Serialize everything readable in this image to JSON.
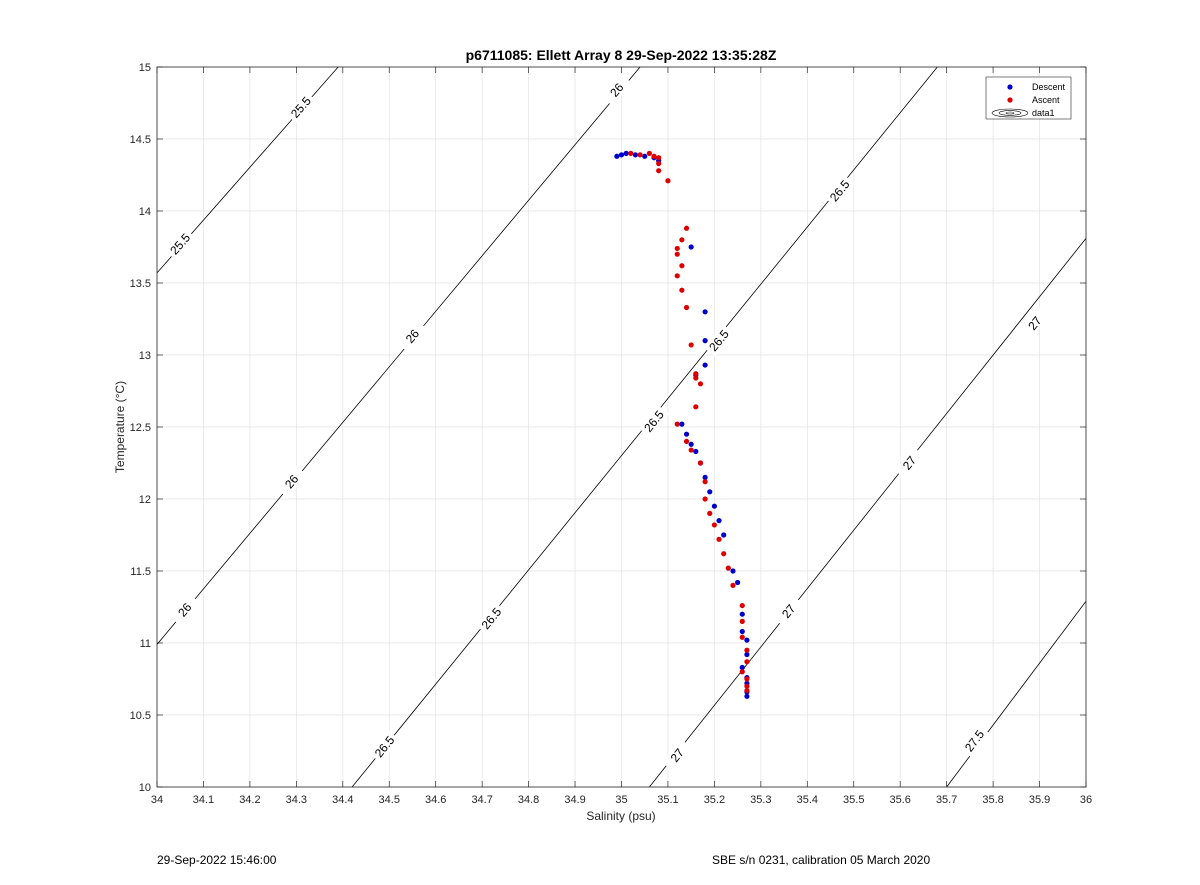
{
  "chart_data": {
    "type": "scatter",
    "title": "p6711085: Ellett Array 8 29-Sep-2022 13:35:28Z",
    "xlabel": "Salinity (psu)",
    "ylabel": "Temperature (°C)",
    "xlim": [
      34,
      36
    ],
    "ylim": [
      10,
      15
    ],
    "xticks": [
      "34",
      "34.1",
      "34.2",
      "34.3",
      "34.4",
      "34.5",
      "34.6",
      "34.7",
      "34.8",
      "34.9",
      "35",
      "35.1",
      "35.2",
      "35.3",
      "35.4",
      "35.5",
      "35.6",
      "35.7",
      "35.8",
      "35.9",
      "36"
    ],
    "yticks": [
      "10",
      "10.5",
      "11",
      "11.5",
      "12",
      "12.5",
      "13",
      "13.5",
      "14",
      "14.5",
      "15"
    ],
    "grid": true,
    "legend_position": "top-right",
    "legend": [
      "Descent",
      "Ascent",
      "data1"
    ],
    "colors": {
      "descent": "#0000cc",
      "ascent": "#dd0000",
      "contour": "#000000",
      "grid": "#e3e3e3"
    },
    "contours": [
      {
        "level": "25.5",
        "points": [
          [
            34.0,
            13.57
          ],
          [
            34.39,
            15.0
          ]
        ],
        "labels": [
          [
            34.05,
            13.77
          ],
          [
            34.31,
            14.72
          ]
        ]
      },
      {
        "level": "26",
        "points": [
          [
            34.0,
            10.99
          ],
          [
            35.04,
            15.0
          ]
        ],
        "labels": [
          [
            34.06,
            11.23
          ],
          [
            34.29,
            12.12
          ],
          [
            34.55,
            13.13
          ],
          [
            34.99,
            14.84
          ]
        ]
      },
      {
        "level": "26.5",
        "points": [
          [
            34.42,
            10.0
          ],
          [
            35.68,
            15.0
          ]
        ],
        "labels": [
          [
            34.49,
            10.28
          ],
          [
            34.72,
            11.17
          ],
          [
            35.07,
            12.54
          ],
          [
            35.21,
            13.1
          ],
          [
            35.47,
            14.14
          ]
        ]
      },
      {
        "level": "27",
        "points": [
          [
            35.06,
            10.0
          ],
          [
            36.0,
            13.81
          ]
        ],
        "labels": [
          [
            35.12,
            10.22
          ],
          [
            35.36,
            11.22
          ],
          [
            35.62,
            12.25
          ],
          [
            35.89,
            13.22
          ]
        ]
      },
      {
        "level": "27.5",
        "points": [
          [
            35.7,
            10.0
          ],
          [
            36.0,
            11.29
          ]
        ],
        "labels": [
          [
            35.76,
            10.32
          ]
        ]
      }
    ],
    "series": [
      {
        "name": "Descent",
        "x": [
          34.99,
          35.0,
          35.01,
          35.03,
          35.05,
          35.07,
          35.08,
          35.15,
          35.18,
          35.18,
          35.18,
          35.16,
          35.13,
          35.14,
          35.15,
          35.16,
          35.17,
          35.18,
          35.19,
          35.2,
          35.21,
          35.22,
          35.24,
          35.25,
          35.26,
          35.26,
          35.27,
          35.27,
          35.26,
          35.27,
          35.27,
          35.27,
          35.27
        ],
        "y": [
          14.38,
          14.39,
          14.4,
          14.39,
          14.38,
          14.37,
          14.35,
          13.75,
          13.3,
          13.1,
          12.93,
          12.86,
          12.52,
          12.45,
          12.38,
          12.33,
          12.25,
          12.15,
          12.05,
          11.95,
          11.85,
          11.75,
          11.5,
          11.42,
          11.2,
          11.08,
          11.02,
          10.92,
          10.83,
          10.76,
          10.72,
          10.66,
          10.63
        ]
      },
      {
        "name": "Ascent",
        "x": [
          35.02,
          35.04,
          35.06,
          35.07,
          35.08,
          35.08,
          35.08,
          35.1,
          35.14,
          35.13,
          35.12,
          35.12,
          35.13,
          35.12,
          35.13,
          35.14,
          35.15,
          35.16,
          35.16,
          35.17,
          35.16,
          35.12,
          35.14,
          35.15,
          35.17,
          35.18,
          35.18,
          35.19,
          35.2,
          35.21,
          35.22,
          35.23,
          35.24,
          35.26,
          35.26,
          35.26,
          35.27,
          35.27,
          35.26,
          35.27,
          35.27,
          35.27
        ],
        "y": [
          14.4,
          14.39,
          14.4,
          14.38,
          14.37,
          14.33,
          14.28,
          14.21,
          13.88,
          13.8,
          13.74,
          13.7,
          13.62,
          13.55,
          13.45,
          13.33,
          13.07,
          12.87,
          12.84,
          12.8,
          12.64,
          12.52,
          12.4,
          12.34,
          12.25,
          12.12,
          12.0,
          11.9,
          11.82,
          11.72,
          11.62,
          11.52,
          11.4,
          11.26,
          11.15,
          11.04,
          10.95,
          10.87,
          10.8,
          10.75,
          10.7,
          10.67
        ]
      }
    ]
  },
  "footer": {
    "left": "29-Sep-2022 15:46:00",
    "right": "SBE s/n 0231, calibration 05 March 2020"
  }
}
